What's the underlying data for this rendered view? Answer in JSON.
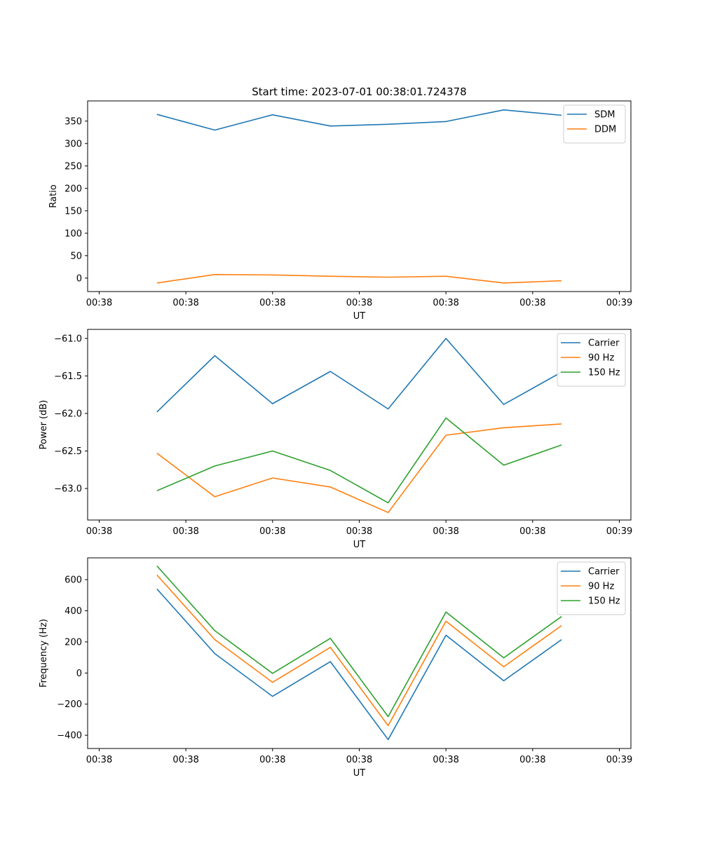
{
  "colors": {
    "c1": "#1f77b4",
    "c2": "#ff7f0e",
    "c3": "#2ca02c"
  },
  "chart_data": [
    {
      "type": "line",
      "title": "Start time: 2023-07-01 00:38:01.724378",
      "xlabel": "UT",
      "ylabel": "Ratio",
      "xlim": [
        -0.2,
        9.2
      ],
      "ylim": [
        -30,
        395
      ],
      "x": [
        1,
        2,
        3,
        4,
        5,
        6,
        7,
        8
      ],
      "xticks": [
        0,
        1.5,
        3,
        4.5,
        6,
        7.5,
        9
      ],
      "xtick_labels": [
        "00:38",
        "00:38",
        "00:38",
        "00:38",
        "00:38",
        "00:38",
        "00:39"
      ],
      "yticks": [
        0,
        50,
        100,
        150,
        200,
        250,
        300,
        350
      ],
      "ytick_labels": [
        "0",
        "50",
        "100",
        "150",
        "200",
        "250",
        "300",
        "350"
      ],
      "legend_position": "top-right",
      "series": [
        {
          "name": "SDM",
          "color": "#1f77b4",
          "values": [
            365,
            330,
            364,
            339,
            343,
            349,
            375,
            363
          ]
        },
        {
          "name": "DDM",
          "color": "#ff7f0e",
          "values": [
            -11,
            8,
            7,
            4,
            2,
            4,
            -11,
            -6
          ]
        }
      ]
    },
    {
      "type": "line",
      "title": "",
      "xlabel": "UT",
      "ylabel": "Power (dB)",
      "xlim": [
        -0.2,
        9.2
      ],
      "ylim": [
        -63.42,
        -60.88
      ],
      "x": [
        1,
        2,
        3,
        4,
        5,
        6,
        7,
        8
      ],
      "xticks": [
        0,
        1.5,
        3,
        4.5,
        6,
        7.5,
        9
      ],
      "xtick_labels": [
        "00:38",
        "00:38",
        "00:38",
        "00:38",
        "00:38",
        "00:38",
        "00:39"
      ],
      "yticks": [
        -63.0,
        -62.5,
        -62.0,
        -61.5,
        -61.0
      ],
      "ytick_labels": [
        "−63.0",
        "−62.5",
        "−62.0",
        "−61.5",
        "−61.0"
      ],
      "legend_position": "top-right",
      "series": [
        {
          "name": "Carrier",
          "color": "#1f77b4",
          "values": [
            -61.98,
            -61.23,
            -61.87,
            -61.44,
            -61.94,
            -61.0,
            -61.88,
            -61.45
          ]
        },
        {
          "name": "90 Hz",
          "color": "#ff7f0e",
          "values": [
            -62.53,
            -63.11,
            -62.86,
            -62.98,
            -63.32,
            -62.29,
            -62.19,
            -62.14
          ]
        },
        {
          "name": "150 Hz",
          "color": "#2ca02c",
          "values": [
            -63.03,
            -62.7,
            -62.5,
            -62.76,
            -63.19,
            -62.06,
            -62.69,
            -62.42
          ]
        }
      ]
    },
    {
      "type": "line",
      "title": "",
      "xlabel": "UT",
      "ylabel": "Frequency (Hz)",
      "xlim": [
        -0.2,
        9.2
      ],
      "ylim": [
        -485,
        740
      ],
      "x": [
        1,
        2,
        3,
        4,
        5,
        6,
        7,
        8
      ],
      "xticks": [
        0,
        1.5,
        3,
        4.5,
        6,
        7.5,
        9
      ],
      "xtick_labels": [
        "00:38",
        "00:38",
        "00:38",
        "00:38",
        "00:38",
        "00:38",
        "00:39"
      ],
      "yticks": [
        -400,
        -200,
        0,
        200,
        400,
        600
      ],
      "ytick_labels": [
        "−400",
        "−200",
        "0",
        "200",
        "400",
        "600"
      ],
      "legend_position": "top-right",
      "series": [
        {
          "name": "Carrier",
          "color": "#1f77b4",
          "values": [
            540,
            125,
            -150,
            73,
            -428,
            243,
            -50,
            215
          ]
        },
        {
          "name": "90 Hz",
          "color": "#ff7f0e",
          "values": [
            630,
            215,
            -60,
            165,
            -338,
            333,
            40,
            305
          ]
        },
        {
          "name": "150 Hz",
          "color": "#2ca02c",
          "values": [
            688,
            272,
            -2,
            223,
            -280,
            392,
            98,
            363
          ]
        }
      ]
    }
  ]
}
